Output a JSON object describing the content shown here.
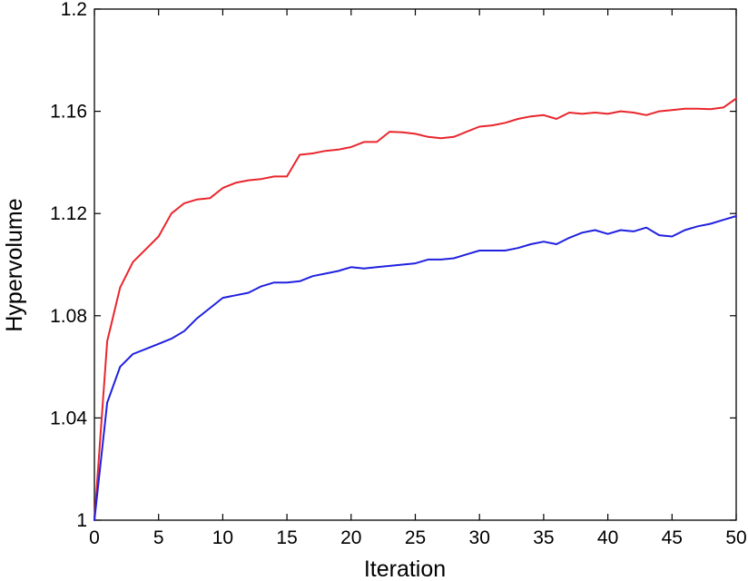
{
  "chart_data": {
    "type": "line",
    "xlabel": "Iteration",
    "ylabel": "Hypervolume",
    "xlim": [
      0,
      50
    ],
    "ylim": [
      1,
      1.2
    ],
    "xticks": [
      0,
      5,
      10,
      15,
      20,
      25,
      30,
      35,
      40,
      45,
      50
    ],
    "yticks": [
      1,
      1.04,
      1.08,
      1.12,
      1.16,
      1.2
    ],
    "ytick_labels": [
      "1",
      "1.04",
      "1.08",
      "1.12",
      "1.16",
      "1.2"
    ],
    "grid": false,
    "x": [
      0,
      1,
      2,
      3,
      4,
      5,
      6,
      7,
      8,
      9,
      10,
      11,
      12,
      13,
      14,
      15,
      16,
      17,
      18,
      19,
      20,
      21,
      22,
      23,
      24,
      25,
      26,
      27,
      28,
      29,
      30,
      31,
      32,
      33,
      34,
      35,
      36,
      37,
      38,
      39,
      40,
      41,
      42,
      43,
      44,
      45,
      46,
      47,
      48,
      49,
      50
    ],
    "series": [
      {
        "color": "#e8262c",
        "values": [
          1.0,
          1.07,
          1.091,
          1.101,
          1.106,
          1.111,
          1.12,
          1.124,
          1.1255,
          1.126,
          1.13,
          1.132,
          1.133,
          1.1335,
          1.1345,
          1.1345,
          1.143,
          1.1435,
          1.1445,
          1.145,
          1.146,
          1.148,
          1.148,
          1.152,
          1.1518,
          1.1512,
          1.15,
          1.1495,
          1.15,
          1.152,
          1.154,
          1.1545,
          1.1555,
          1.157,
          1.158,
          1.1585,
          1.157,
          1.1595,
          1.159,
          1.1595,
          1.159,
          1.16,
          1.1595,
          1.1585,
          1.16,
          1.1605,
          1.161,
          1.161,
          1.1608,
          1.1615,
          1.165
        ]
      },
      {
        "color": "#2020e0",
        "values": [
          1.0,
          1.046,
          1.06,
          1.065,
          1.067,
          1.069,
          1.071,
          1.074,
          1.079,
          1.083,
          1.087,
          1.088,
          1.089,
          1.0915,
          1.093,
          1.093,
          1.0935,
          1.0955,
          1.0965,
          1.0975,
          1.099,
          1.0985,
          1.099,
          1.0995,
          1.1,
          1.1005,
          1.102,
          1.102,
          1.1025,
          1.104,
          1.1055,
          1.1055,
          1.1055,
          1.1065,
          1.108,
          1.109,
          1.108,
          1.1105,
          1.1125,
          1.1135,
          1.112,
          1.1135,
          1.113,
          1.1145,
          1.1115,
          1.111,
          1.1135,
          1.115,
          1.116,
          1.1175,
          1.119
        ]
      }
    ]
  }
}
